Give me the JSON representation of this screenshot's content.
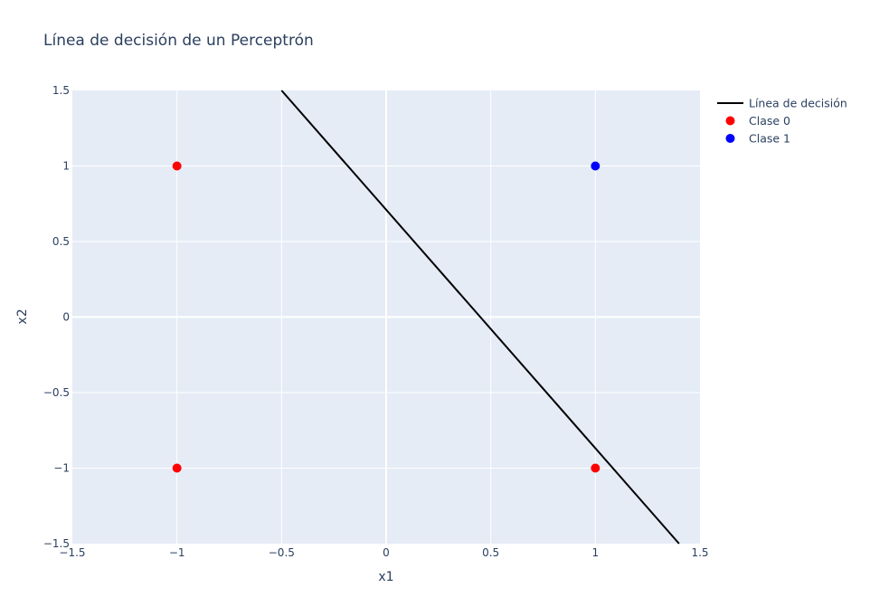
{
  "chart_data": {
    "type": "scatter",
    "title": "Línea de decisión de un Perceptrón",
    "xlabel": "x1",
    "ylabel": "x2",
    "xlim": [
      -1.5,
      1.5
    ],
    "ylim": [
      -1.5,
      1.5
    ],
    "x_ticks": [
      "−1.5",
      "−1",
      "−0.5",
      "0",
      "0.5",
      "1",
      "1.5"
    ],
    "x_tick_values": [
      -1.5,
      -1,
      -0.5,
      0,
      0.5,
      1,
      1.5
    ],
    "y_ticks": [
      "−1.5",
      "−1",
      "−0.5",
      "0",
      "0.5",
      "1",
      "1.5"
    ],
    "y_tick_values": [
      -1.5,
      -1,
      -0.5,
      0,
      0.5,
      1,
      1.5
    ],
    "grid": true,
    "legend_position": "top-right",
    "plot_bg": "#e5ecf6",
    "series": [
      {
        "name": "Línea de decisión",
        "mode": "line",
        "color": "#000000",
        "x": [
          -0.5,
          1.4
        ],
        "y": [
          1.5,
          -1.5
        ]
      },
      {
        "name": "Clase 0",
        "mode": "markers",
        "color": "#ff0000",
        "x": [
          -1,
          -1,
          1
        ],
        "y": [
          -1,
          1,
          -1
        ]
      },
      {
        "name": "Clase 1",
        "mode": "markers",
        "color": "#0000ff",
        "x": [
          1
        ],
        "y": [
          1
        ]
      }
    ]
  }
}
